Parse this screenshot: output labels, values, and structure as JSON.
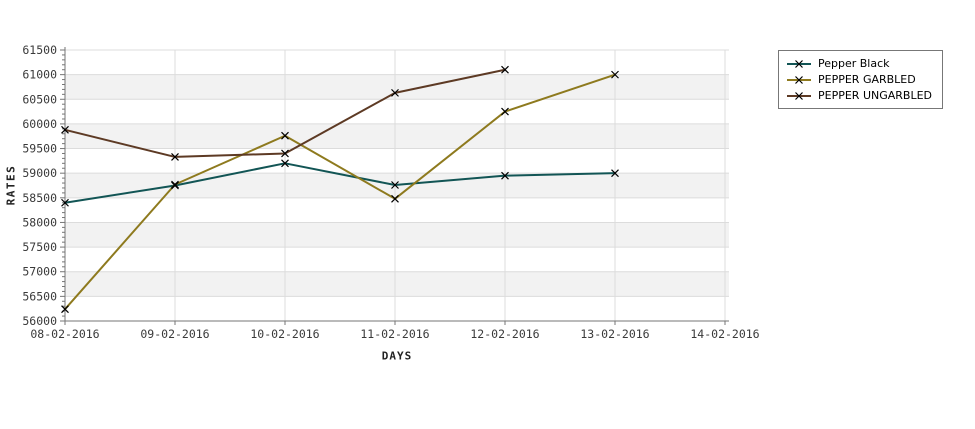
{
  "chart_data": {
    "type": "line",
    "title": "",
    "xlabel": "DAYS",
    "ylabel": "RATES",
    "x_tick_labels": [
      "08-02-2016",
      "09-02-2016",
      "10-02-2016",
      "11-02-2016",
      "12-02-2016",
      "13-02-2016",
      "14-02-2016"
    ],
    "y_tick_labels": [
      "56000",
      "56500",
      "57000",
      "57500",
      "58000",
      "58500",
      "59000",
      "59500",
      "60000",
      "60500",
      "61000",
      "61500"
    ],
    "ylim": [
      56000,
      61500
    ],
    "y_tick_step": 500,
    "y_minor_tick_step": 100,
    "grid": true,
    "legend_position": "outside-top-right",
    "marker_style": "x",
    "marker_color": "#000000",
    "band_color": "#f2f2f2",
    "grid_color": "#dcdcdc",
    "axis_color": "#757575",
    "tick_label_color": "#3a3a3a",
    "series": [
      {
        "name": "Pepper Black",
        "color": "#125555",
        "values": [
          58400,
          58750,
          59200,
          58760,
          58950,
          59000,
          null
        ]
      },
      {
        "name": "PEPPER GARBLED",
        "color": "#8e7a1e",
        "values": [
          56240,
          58770,
          59760,
          58480,
          60250,
          61000,
          null
        ]
      },
      {
        "name": "PEPPER UNGARBLED",
        "color": "#5d3a24",
        "values": [
          59880,
          59330,
          59400,
          60630,
          61100,
          null,
          null
        ]
      }
    ]
  }
}
